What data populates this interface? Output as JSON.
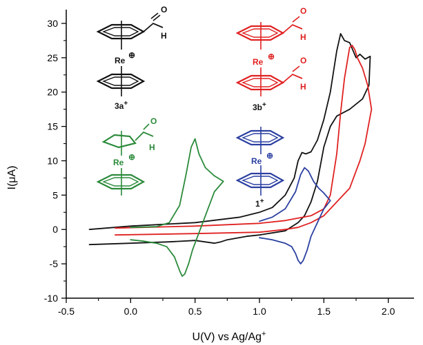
{
  "chart_data": {
    "type": "line",
    "xlabel_main": "U(V) vs Ag/Ag",
    "xlabel_sup": "+",
    "ylabel": "I(μA)",
    "xlim": [
      -0.5,
      2.2
    ],
    "ylim": [
      -10,
      32
    ],
    "xticks": [
      -0.5,
      0.0,
      0.5,
      1.0,
      1.5,
      2.0
    ],
    "xtick_labels": [
      "-0.5",
      "0.0",
      "0.5",
      "1.0",
      "1.5",
      "2.0"
    ],
    "yticks": [
      -10,
      -5,
      0,
      5,
      10,
      15,
      20,
      25,
      30
    ],
    "ytick_labels": [
      "-10",
      "-5",
      "0",
      "5",
      "10",
      "15",
      "20",
      "25",
      "30"
    ],
    "colors": {
      "black": "#111111",
      "red": "#e02020",
      "green": "#2a8a3a",
      "blue": "#2a3fa0"
    },
    "series": [
      {
        "color": "black",
        "x": [
          -0.32,
          0.0,
          0.5,
          0.85,
          1.0,
          1.1,
          1.2,
          1.27,
          1.3,
          1.33,
          1.36,
          1.4,
          1.45,
          1.5,
          1.55,
          1.6,
          1.63,
          1.66,
          1.7,
          1.75,
          1.78,
          1.82,
          1.86,
          1.85,
          1.8,
          1.7,
          1.6,
          1.55,
          1.5,
          1.45,
          1.4,
          1.35,
          1.3,
          1.2,
          1.1,
          1.0,
          0.9,
          0.75,
          0.7,
          0.65,
          0.5,
          0.3,
          0.0,
          -0.32
        ],
        "y": [
          0.0,
          0.5,
          1.0,
          1.8,
          2.5,
          3.2,
          5.0,
          7.5,
          10.0,
          11.2,
          11.0,
          11.3,
          13.0,
          16.0,
          20.0,
          26.0,
          28.5,
          27.5,
          27.2,
          25.0,
          25.5,
          24.8,
          25.2,
          21.0,
          19.0,
          17.5,
          16.5,
          15.0,
          12.0,
          7.0,
          4.0,
          2.0,
          1.0,
          -0.2,
          -0.5,
          -0.8,
          -1.0,
          -1.5,
          -1.8,
          -2.0,
          -1.6,
          -1.8,
          -2.0,
          -2.2
        ]
      },
      {
        "color": "red",
        "x": [
          -0.12,
          0.5,
          1.0,
          1.2,
          1.4,
          1.5,
          1.55,
          1.6,
          1.63,
          1.66,
          1.7,
          1.72,
          1.74,
          1.76,
          1.8,
          1.84,
          1.87,
          1.86,
          1.82,
          1.78,
          1.75,
          1.7,
          1.65,
          1.6,
          1.55,
          1.5,
          1.45,
          1.4,
          1.3,
          1.2,
          1.0,
          0.5,
          -0.12
        ],
        "y": [
          0.2,
          0.5,
          0.9,
          1.3,
          2.0,
          3.0,
          5.0,
          11.0,
          17.0,
          22.0,
          26.5,
          26.8,
          26.2,
          25.0,
          23.5,
          21.0,
          17.5,
          16.5,
          12.5,
          10.0,
          8.5,
          6.0,
          5.0,
          4.0,
          3.0,
          2.0,
          1.5,
          1.0,
          0.3,
          0.0,
          -0.4,
          -0.6,
          -0.8
        ]
      },
      {
        "color": "green",
        "x": [
          0.0,
          0.2,
          0.3,
          0.38,
          0.43,
          0.47,
          0.5,
          0.53,
          0.58,
          0.65,
          0.72,
          0.72,
          0.65,
          0.58,
          0.52,
          0.48,
          0.45,
          0.42,
          0.4,
          0.38,
          0.34,
          0.28,
          0.2,
          0.1,
          0.0
        ],
        "y": [
          0.3,
          0.4,
          1.0,
          3.5,
          8.0,
          12.0,
          13.2,
          11.0,
          9.0,
          7.8,
          7.0,
          7.0,
          5.5,
          2.0,
          -1.0,
          -3.0,
          -5.0,
          -6.5,
          -6.8,
          -6.0,
          -4.0,
          -2.5,
          -2.0,
          -1.7,
          -1.5
        ]
      },
      {
        "color": "blue",
        "x": [
          1.0,
          1.1,
          1.2,
          1.28,
          1.32,
          1.35,
          1.38,
          1.42,
          1.46,
          1.5,
          1.55,
          1.55,
          1.5,
          1.45,
          1.4,
          1.37,
          1.34,
          1.32,
          1.3,
          1.28,
          1.25,
          1.2,
          1.1,
          1.0
        ],
        "y": [
          1.2,
          1.8,
          3.0,
          5.5,
          8.0,
          9.0,
          8.5,
          7.0,
          6.0,
          5.3,
          4.2,
          4.2,
          3.0,
          1.0,
          -1.0,
          -3.0,
          -4.5,
          -5.0,
          -4.5,
          -3.5,
          -2.5,
          -2.0,
          -1.5,
          -1.2
        ]
      }
    ]
  },
  "molecules": [
    {
      "id": "3a+",
      "label_main": "3a",
      "label_sup": "+",
      "color": "black",
      "metal": "Re",
      "charge": "⊕",
      "substituents": [
        "H",
        "O"
      ]
    },
    {
      "id": "3b+",
      "label_main": "3b",
      "label_sup": "+",
      "color": "red",
      "metal": "Re",
      "charge": "⊕",
      "substituents": [
        "H",
        "O",
        "H",
        "O"
      ]
    },
    {
      "id": "green-complex",
      "color": "green",
      "metal": "Re",
      "charge": "⊕",
      "substituents": [
        "H",
        "O"
      ]
    },
    {
      "id": "1+",
      "label_main": "1",
      "label_sup": "+",
      "color": "blue",
      "metal": "Re",
      "charge": "⊕"
    }
  ]
}
